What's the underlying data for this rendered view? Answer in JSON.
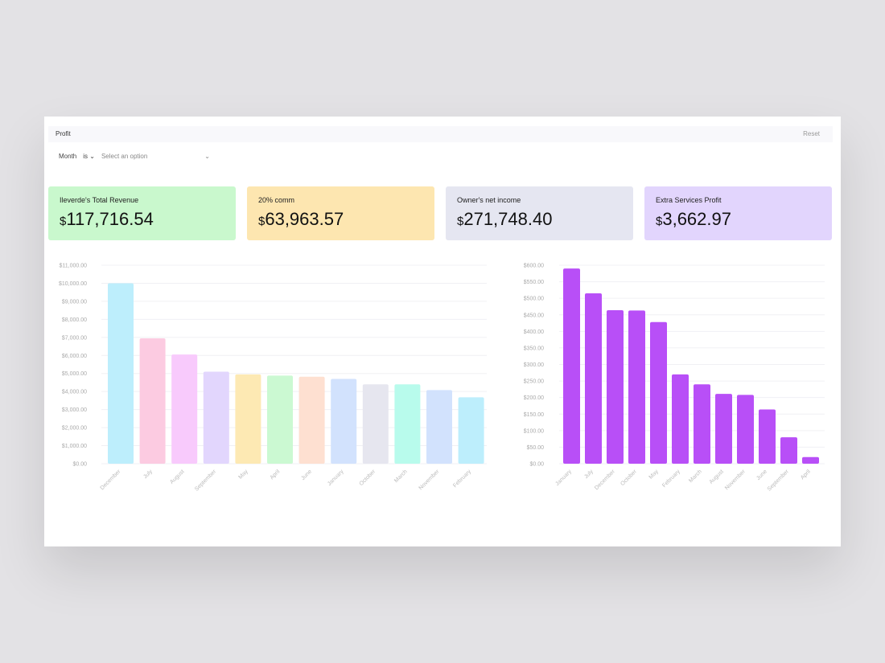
{
  "header": {
    "title": "Profit",
    "reset_label": "Reset"
  },
  "filter": {
    "field": "Month",
    "operator": "is",
    "placeholder": "Select an option"
  },
  "kpis": [
    {
      "label": "Ileverde's Total Revenue",
      "currency": "$",
      "value": "117,716.54",
      "color": "#c9f8cd"
    },
    {
      "label": "20% comm",
      "currency": "$",
      "value": "63,963.57",
      "color": "#fde6b0"
    },
    {
      "label": "Owner's net income",
      "currency": "$",
      "value": "271,748.40",
      "color": "#e5e6f1"
    },
    {
      "label": "Extra Services Profit",
      "currency": "$",
      "value": "3,662.97",
      "color": "#e2d5fd"
    }
  ],
  "chart_data": [
    {
      "type": "bar",
      "title": "",
      "xlabel": "",
      "ylabel": "",
      "ylim": [
        0,
        11000
      ],
      "grid": true,
      "yticks": [
        "$0.00",
        "$1,000.00",
        "$2,000.00",
        "$3,000.00",
        "$4,000.00",
        "$5,000.00",
        "$6,000.00",
        "$7,000.00",
        "$8,000.00",
        "$9,000.00",
        "$10,000.00",
        "$11,000.00"
      ],
      "categories": [
        "December",
        "July",
        "August",
        "September",
        "May",
        "April",
        "June",
        "January",
        "October",
        "March",
        "November",
        "February"
      ],
      "values": [
        10000,
        6950,
        6050,
        5100,
        4950,
        4880,
        4820,
        4700,
        4400,
        4400,
        4080,
        3680
      ],
      "colors": [
        "#bdeefc",
        "#fccbe1",
        "#f8cafc",
        "#e2d6fd",
        "#fde9b3",
        "#cbf9d2",
        "#fee0d1",
        "#d2e2fd",
        "#e6e6ef",
        "#b8fbec",
        "#d2e2fd",
        "#bdeefc"
      ]
    },
    {
      "type": "bar",
      "title": "",
      "xlabel": "",
      "ylabel": "",
      "ylim": [
        0,
        600
      ],
      "grid": true,
      "yticks": [
        "$0.00",
        "$50.00",
        "$100.00",
        "$150.00",
        "$200.00",
        "$250.00",
        "$300.00",
        "$350.00",
        "$400.00",
        "$450.00",
        "$500.00",
        "$550.00",
        "$600.00"
      ],
      "categories": [
        "January",
        "July",
        "December",
        "October",
        "May",
        "February",
        "March",
        "August",
        "November",
        "June",
        "September",
        "April"
      ],
      "values": [
        590,
        515,
        464,
        463,
        428,
        270,
        240,
        211,
        208,
        164,
        80,
        20
      ],
      "colors": [
        "#b84ff7"
      ]
    }
  ]
}
